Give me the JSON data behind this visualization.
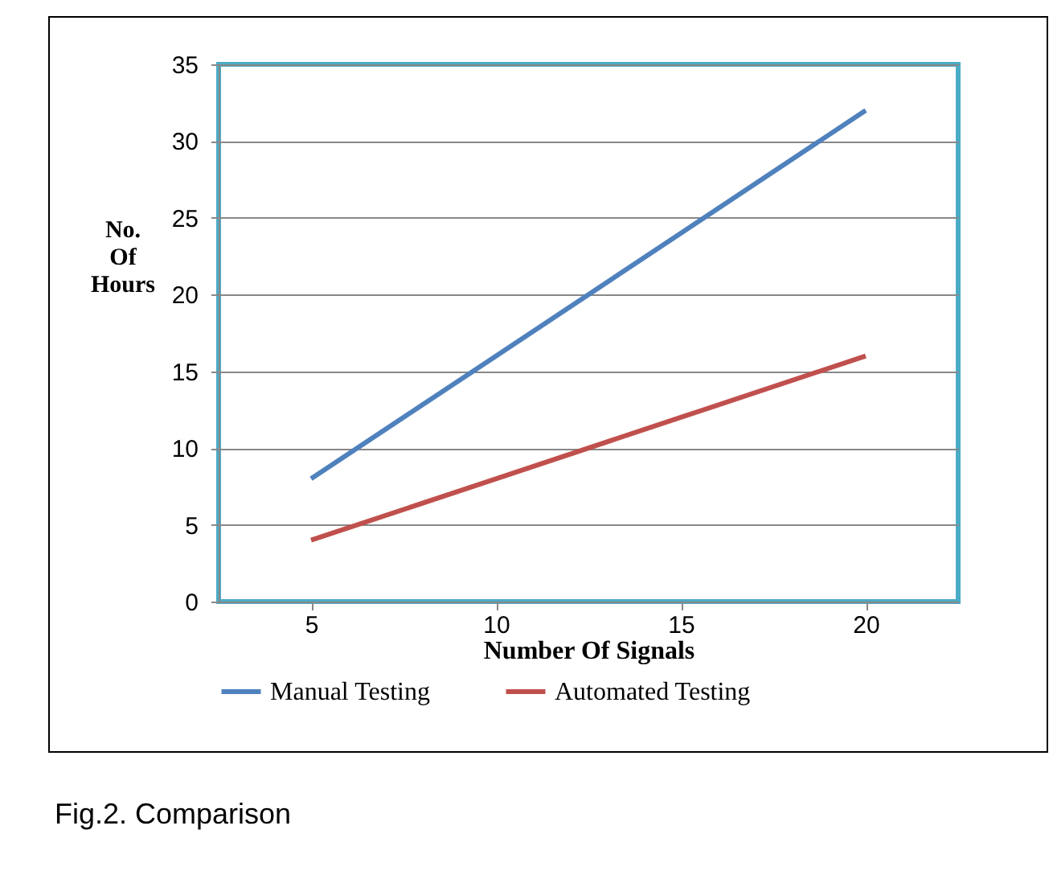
{
  "chart_data": {
    "type": "line",
    "xlabel": "Number Of Signals",
    "ylabel": "No. Of Hours",
    "categories": [
      "5",
      "10",
      "15",
      "20"
    ],
    "series": [
      {
        "name": "Manual Testing",
        "color": "#4f81bd",
        "values": [
          8,
          16,
          24,
          32
        ]
      },
      {
        "name": "Automated Testing",
        "color": "#c0504d",
        "values": [
          4,
          8,
          12,
          16
        ]
      }
    ],
    "ylim": [
      0,
      35
    ],
    "yticks": [
      0,
      5,
      10,
      15,
      20,
      25,
      30,
      35
    ],
    "grid": "y",
    "legend": "bottom",
    "annotations": [
      "Fig.2. Comparison"
    ]
  }
}
